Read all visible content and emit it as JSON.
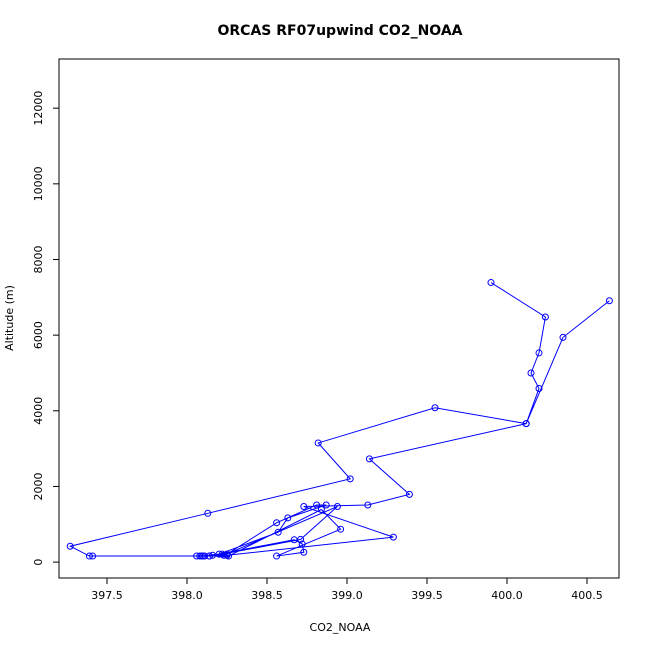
{
  "chart_data": {
    "type": "line",
    "title": "ORCAS RF07upwind CO2_NOAA",
    "xlabel": "CO2_NOAA",
    "ylabel": "Altitude (m)",
    "xlim": [
      397.2,
      400.7
    ],
    "ylim": [
      -420,
      13300
    ],
    "xticks": [
      397.5,
      398.0,
      398.5,
      399.0,
      399.5,
      400.0,
      400.5
    ],
    "xtick_labels": [
      "397.5",
      "398.0",
      "398.5",
      "399.0",
      "399.5",
      "400.0",
      "400.5"
    ],
    "yticks": [
      0,
      2000,
      4000,
      6000,
      8000,
      10000,
      12000
    ],
    "ytick_labels": [
      "0",
      "2000",
      "4000",
      "6000",
      "8000",
      "10000",
      "12000"
    ],
    "grid": false,
    "legend": "none",
    "series_color": "#0000ff",
    "series": [
      {
        "x": [
          399.9,
          400.24,
          400.2,
          400.15,
          400.2,
          400.12,
          399.55,
          398.82,
          399.02,
          398.13,
          397.27,
          397.39,
          397.41,
          398.14,
          398.25,
          398.56,
          398.81,
          398.87,
          398.63,
          398.57,
          398.2,
          398.08,
          398.06,
          398.11,
          398.22,
          398.71,
          398.94,
          398.23,
          398.09,
          398.1,
          398.14,
          398.26,
          398.84,
          398.96,
          398.56,
          398.73,
          398.72,
          398.67,
          398.16,
          398.25,
          399.29,
          398.73,
          399.13,
          399.39,
          399.14,
          400.12,
          400.35,
          400.64
        ],
        "y": [
          7390,
          6480,
          5530,
          5000,
          4590,
          3660,
          4080,
          3150,
          2200,
          1290,
          420,
          160,
          160,
          160,
          210,
          1040,
          1510,
          1510,
          1170,
          790,
          210,
          160,
          160,
          160,
          210,
          600,
          1470,
          180,
          160,
          160,
          160,
          160,
          1390,
          870,
          160,
          260,
          480,
          590,
          180,
          180,
          660,
          1470,
          1510,
          1790,
          2730,
          3660,
          5940,
          6910
        ]
      }
    ]
  }
}
